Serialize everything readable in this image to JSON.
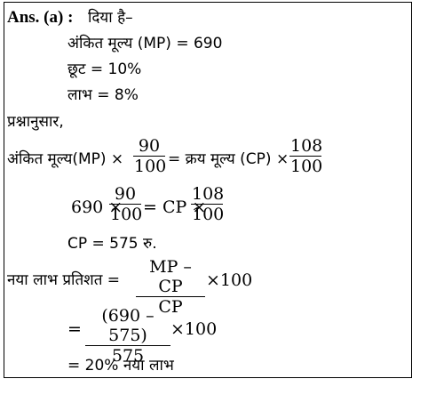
{
  "heading": {
    "label": "Ans. (a) :",
    "given": "दिया है–"
  },
  "given_lines": {
    "mp": "अंकित मूल्य (MP) = 690",
    "discount": "छूट = 10%",
    "profit": "लाभ = 8%"
  },
  "according": "प्रश्नानुसार,",
  "eq1": {
    "left": "अंकित मूल्य(MP) ×",
    "frac1_num": "90",
    "frac1_den": "100",
    "mid": "= क्रय मूल्य (CP) ×",
    "frac2_num": "108",
    "frac2_den": "100"
  },
  "eq2": {
    "left": "690 ×",
    "frac1_num": "90",
    "frac1_den": "100",
    "mid": "= CP ×",
    "frac2_num": "108",
    "frac2_den": "100"
  },
  "cp_result": "CP = 575 रु.",
  "eq3": {
    "left": "नया लाभ प्रतिशत =",
    "num": "MP – CP",
    "den": "CP",
    "right": "×100"
  },
  "eq4": {
    "left": "=",
    "num": "(690 – 575)",
    "den": "575",
    "right": "×100"
  },
  "final": "= 20% नया लाभ"
}
